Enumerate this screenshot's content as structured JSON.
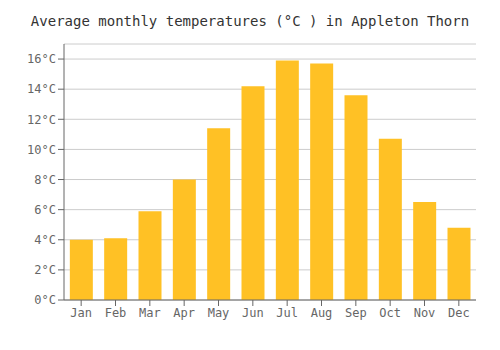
{
  "chart_data": {
    "type": "bar",
    "title": "Average monthly temperatures (°C ) in Appleton Thorn",
    "categories": [
      "Jan",
      "Feb",
      "Mar",
      "Apr",
      "May",
      "Jun",
      "Jul",
      "Aug",
      "Sep",
      "Oct",
      "Nov",
      "Dec"
    ],
    "values": [
      4.0,
      4.1,
      5.9,
      8.0,
      11.4,
      14.2,
      15.9,
      15.7,
      13.6,
      10.7,
      6.5,
      4.8
    ],
    "color": "#FFC125",
    "ylim": [
      0,
      17
    ],
    "yticks": [
      {
        "value": 0,
        "label": "0°C"
      },
      {
        "value": 2,
        "label": "2°C"
      },
      {
        "value": 4,
        "label": "4°C"
      },
      {
        "value": 6,
        "label": "6°C"
      },
      {
        "value": 8,
        "label": "8°C"
      },
      {
        "value": 10,
        "label": "10°C"
      },
      {
        "value": 12,
        "label": "12°C"
      },
      {
        "value": 14,
        "label": "14°C"
      },
      {
        "value": 16,
        "label": "16°C"
      }
    ],
    "grid": true
  }
}
